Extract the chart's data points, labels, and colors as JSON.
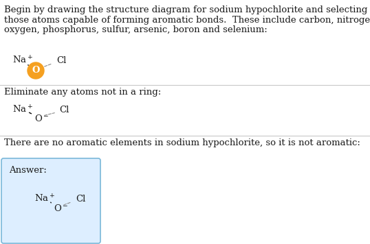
{
  "title_text_line1": "Begin by drawing the structure diagram for sodium hypochlorite and selecting",
  "title_text_line2": "those atoms capable of forming aromatic bonds.  These include carbon, nitrogen,",
  "title_text_line3": "oxygen, phosphorus, sulfur, arsenic, boron and selenium:",
  "section2_text": "Eliminate any atoms not in a ring:",
  "section3_text": "There are no aromatic elements in sodium hypochlorite, so it is not aromatic:",
  "answer_label": "Answer:",
  "bg_color": "#ffffff",
  "text_color": "#1a1a1a",
  "font_size": 9.5,
  "answer_box_facecolor": "#ddeeff",
  "answer_box_edgecolor": "#7ab8d9",
  "orange_circle_color": "#f5a020",
  "line_color": "#c8c8c8"
}
